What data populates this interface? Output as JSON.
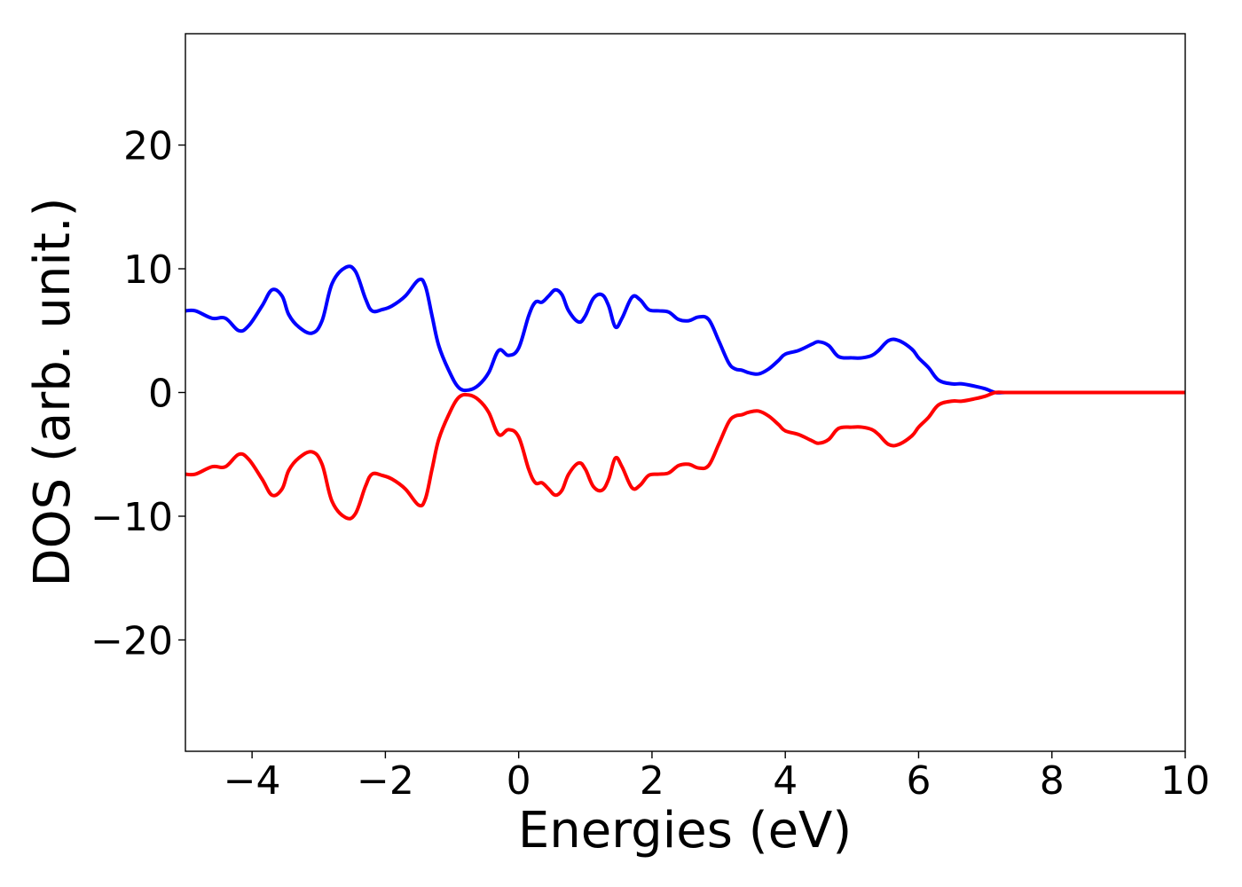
{
  "chart_data": {
    "type": "line",
    "title": "",
    "xlabel": "Energies (eV)",
    "ylabel": "DOS (arb. unit.)",
    "xlim": [
      -5,
      10
    ],
    "ylim": [
      -29,
      29
    ],
    "x_ticks": [
      -4,
      -2,
      0,
      2,
      4,
      6,
      8,
      10
    ],
    "x_tick_labels": [
      "−4",
      "−2",
      "0",
      "2",
      "4",
      "6",
      "8",
      "10"
    ],
    "y_ticks": [
      -20,
      -10,
      0,
      10,
      20
    ],
    "y_tick_labels": [
      "−20",
      "−10",
      "0",
      "10",
      "20"
    ],
    "grid": false,
    "legend": "none",
    "series": [
      {
        "color": "#0000ff",
        "x": [
          -5.0,
          -4.85,
          -4.6,
          -4.4,
          -4.2,
          -4.05,
          -3.85,
          -3.7,
          -3.55,
          -3.45,
          -3.3,
          -3.1,
          -2.95,
          -2.8,
          -2.6,
          -2.45,
          -2.3,
          -2.2,
          -2.05,
          -1.9,
          -1.7,
          -1.5,
          -1.4,
          -1.3,
          -1.2,
          -1.05,
          -0.9,
          -0.75,
          -0.6,
          -0.45,
          -0.3,
          -0.15,
          0.0,
          0.15,
          0.25,
          0.35,
          0.45,
          0.55,
          0.65,
          0.75,
          0.9,
          1.0,
          1.12,
          1.25,
          1.35,
          1.45,
          1.55,
          1.7,
          1.82,
          1.95,
          2.1,
          2.25,
          2.4,
          2.55,
          2.7,
          2.85,
          3.0,
          3.15,
          3.25,
          3.35,
          3.45,
          3.6,
          3.75,
          3.9,
          4.0,
          4.2,
          4.4,
          4.5,
          4.65,
          4.8,
          5.0,
          5.15,
          5.3,
          5.4,
          5.55,
          5.7,
          5.9,
          6.0,
          6.15,
          6.3,
          6.5,
          6.65,
          6.85,
          7.0,
          7.15,
          7.3,
          7.5,
          7.8,
          8.0,
          8.2,
          8.5,
          9.0,
          10.0
        ],
        "y": [
          6.6,
          6.6,
          6.0,
          6.0,
          5.0,
          5.4,
          7.0,
          8.3,
          7.8,
          6.3,
          5.3,
          4.8,
          5.8,
          8.8,
          10.1,
          9.8,
          7.6,
          6.6,
          6.7,
          7.0,
          7.8,
          9.1,
          8.6,
          6.2,
          3.8,
          1.8,
          0.4,
          0.2,
          0.6,
          1.6,
          3.4,
          3.0,
          3.6,
          6.2,
          7.3,
          7.3,
          7.8,
          8.3,
          7.9,
          6.6,
          5.7,
          6.2,
          7.6,
          7.9,
          7.0,
          5.3,
          6.0,
          7.7,
          7.5,
          6.7,
          6.6,
          6.5,
          5.9,
          5.8,
          6.1,
          5.9,
          4.2,
          2.4,
          1.9,
          1.8,
          1.6,
          1.5,
          1.9,
          2.6,
          3.1,
          3.4,
          3.9,
          4.1,
          3.8,
          2.9,
          2.8,
          2.8,
          3.0,
          3.4,
          4.2,
          4.2,
          3.5,
          2.8,
          2.0,
          1.0,
          0.7,
          0.7,
          0.5,
          0.3,
          0.0,
          0.0,
          0.0,
          0.0,
          0.0,
          0.0,
          0.0,
          0.0,
          0.0
        ]
      },
      {
        "color": "#ff0000",
        "x": [
          -5.0,
          -4.85,
          -4.6,
          -4.4,
          -4.2,
          -4.05,
          -3.85,
          -3.7,
          -3.55,
          -3.45,
          -3.3,
          -3.1,
          -2.95,
          -2.8,
          -2.6,
          -2.45,
          -2.3,
          -2.2,
          -2.05,
          -1.9,
          -1.7,
          -1.5,
          -1.4,
          -1.3,
          -1.2,
          -1.05,
          -0.9,
          -0.75,
          -0.6,
          -0.45,
          -0.3,
          -0.15,
          0.0,
          0.15,
          0.25,
          0.35,
          0.45,
          0.55,
          0.65,
          0.75,
          0.9,
          1.0,
          1.12,
          1.25,
          1.35,
          1.45,
          1.55,
          1.7,
          1.82,
          1.95,
          2.1,
          2.25,
          2.4,
          2.55,
          2.7,
          2.85,
          3.0,
          3.15,
          3.25,
          3.35,
          3.45,
          3.6,
          3.75,
          3.9,
          4.0,
          4.2,
          4.4,
          4.5,
          4.65,
          4.8,
          5.0,
          5.15,
          5.3,
          5.4,
          5.55,
          5.7,
          5.9,
          6.0,
          6.15,
          6.3,
          6.5,
          6.65,
          6.85,
          7.0,
          7.15,
          7.3,
          7.5,
          7.8,
          8.0,
          8.2,
          8.5,
          9.0,
          10.0
        ],
        "y": [
          -6.6,
          -6.6,
          -6.0,
          -6.0,
          -5.0,
          -5.4,
          -7.0,
          -8.3,
          -7.8,
          -6.3,
          -5.3,
          -4.8,
          -5.8,
          -8.8,
          -10.1,
          -9.8,
          -7.6,
          -6.6,
          -6.7,
          -7.0,
          -7.8,
          -9.1,
          -8.6,
          -6.2,
          -3.8,
          -1.8,
          -0.4,
          -0.2,
          -0.6,
          -1.6,
          -3.4,
          -3.0,
          -3.6,
          -6.2,
          -7.3,
          -7.3,
          -7.8,
          -8.3,
          -7.9,
          -6.6,
          -5.7,
          -6.2,
          -7.6,
          -7.9,
          -7.0,
          -5.3,
          -6.0,
          -7.7,
          -7.5,
          -6.7,
          -6.6,
          -6.5,
          -5.9,
          -5.8,
          -6.1,
          -5.9,
          -4.2,
          -2.4,
          -1.9,
          -1.8,
          -1.6,
          -1.5,
          -1.9,
          -2.6,
          -3.1,
          -3.4,
          -3.9,
          -4.1,
          -3.8,
          -2.9,
          -2.8,
          -2.8,
          -3.0,
          -3.4,
          -4.2,
          -4.2,
          -3.5,
          -2.8,
          -2.0,
          -1.0,
          -0.7,
          -0.7,
          -0.5,
          -0.3,
          0.0,
          0.0,
          0.0,
          0.0,
          0.0,
          0.0,
          0.0,
          0.0,
          0.0
        ]
      }
    ]
  }
}
